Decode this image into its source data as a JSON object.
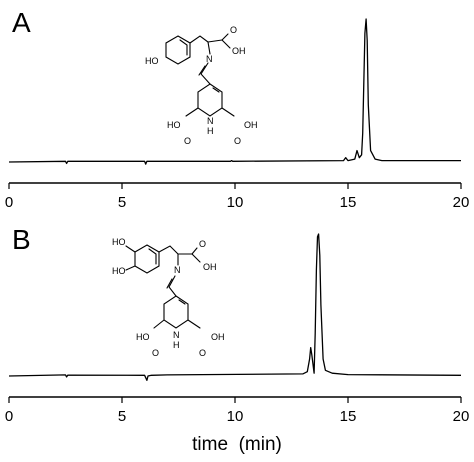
{
  "chart_data": [
    {
      "type": "line",
      "panel_label": "A",
      "xlim": [
        0,
        20
      ],
      "xticks": [
        0,
        5,
        10,
        15,
        20
      ],
      "xlabel": "",
      "x": [
        0,
        2.5,
        2.55,
        2.6,
        6.0,
        6.05,
        6.1,
        9.8,
        9.85,
        9.9,
        14.8,
        14.9,
        15.0,
        15.3,
        15.4,
        15.5,
        15.6,
        15.65,
        15.7,
        15.75,
        15.8,
        15.85,
        15.9,
        16.0,
        16.2,
        16.5,
        20
      ],
      "y": [
        0.0,
        0.005,
        -0.01,
        0.005,
        0.005,
        -0.015,
        0.005,
        0.005,
        0.01,
        0.005,
        0.01,
        0.03,
        0.01,
        0.02,
        0.08,
        0.03,
        0.05,
        0.2,
        0.55,
        0.9,
        1.0,
        0.85,
        0.4,
        0.08,
        0.02,
        0.01,
        0.01
      ],
      "structure": {
        "labels": [
          "HO",
          "N",
          "OH",
          "O",
          "HO",
          "O",
          "N",
          "H",
          "OH",
          "O"
        ]
      }
    },
    {
      "type": "line",
      "panel_label": "B",
      "xlim": [
        0,
        20
      ],
      "xticks": [
        0,
        5,
        10,
        15,
        20
      ],
      "xlabel": "time  (min)",
      "x": [
        0,
        2.5,
        2.55,
        2.6,
        6.0,
        6.1,
        6.15,
        6.3,
        7.0,
        13.0,
        13.2,
        13.3,
        13.35,
        13.4,
        13.5,
        13.55,
        13.6,
        13.65,
        13.7,
        13.75,
        13.8,
        13.9,
        14.0,
        14.3,
        15.0,
        20
      ],
      "y": [
        0.0,
        0.008,
        -0.006,
        0.006,
        0.005,
        -0.03,
        0.0,
        0.005,
        0.008,
        0.015,
        0.03,
        0.12,
        0.2,
        0.15,
        0.02,
        0.3,
        0.75,
        0.98,
        1.0,
        0.85,
        0.5,
        0.12,
        0.04,
        0.02,
        0.01,
        0.005
      ],
      "structure": {
        "labels": [
          "HO",
          "HO",
          "N",
          "OH",
          "O",
          "HO",
          "O",
          "N",
          "H",
          "OH",
          "O"
        ]
      }
    }
  ]
}
